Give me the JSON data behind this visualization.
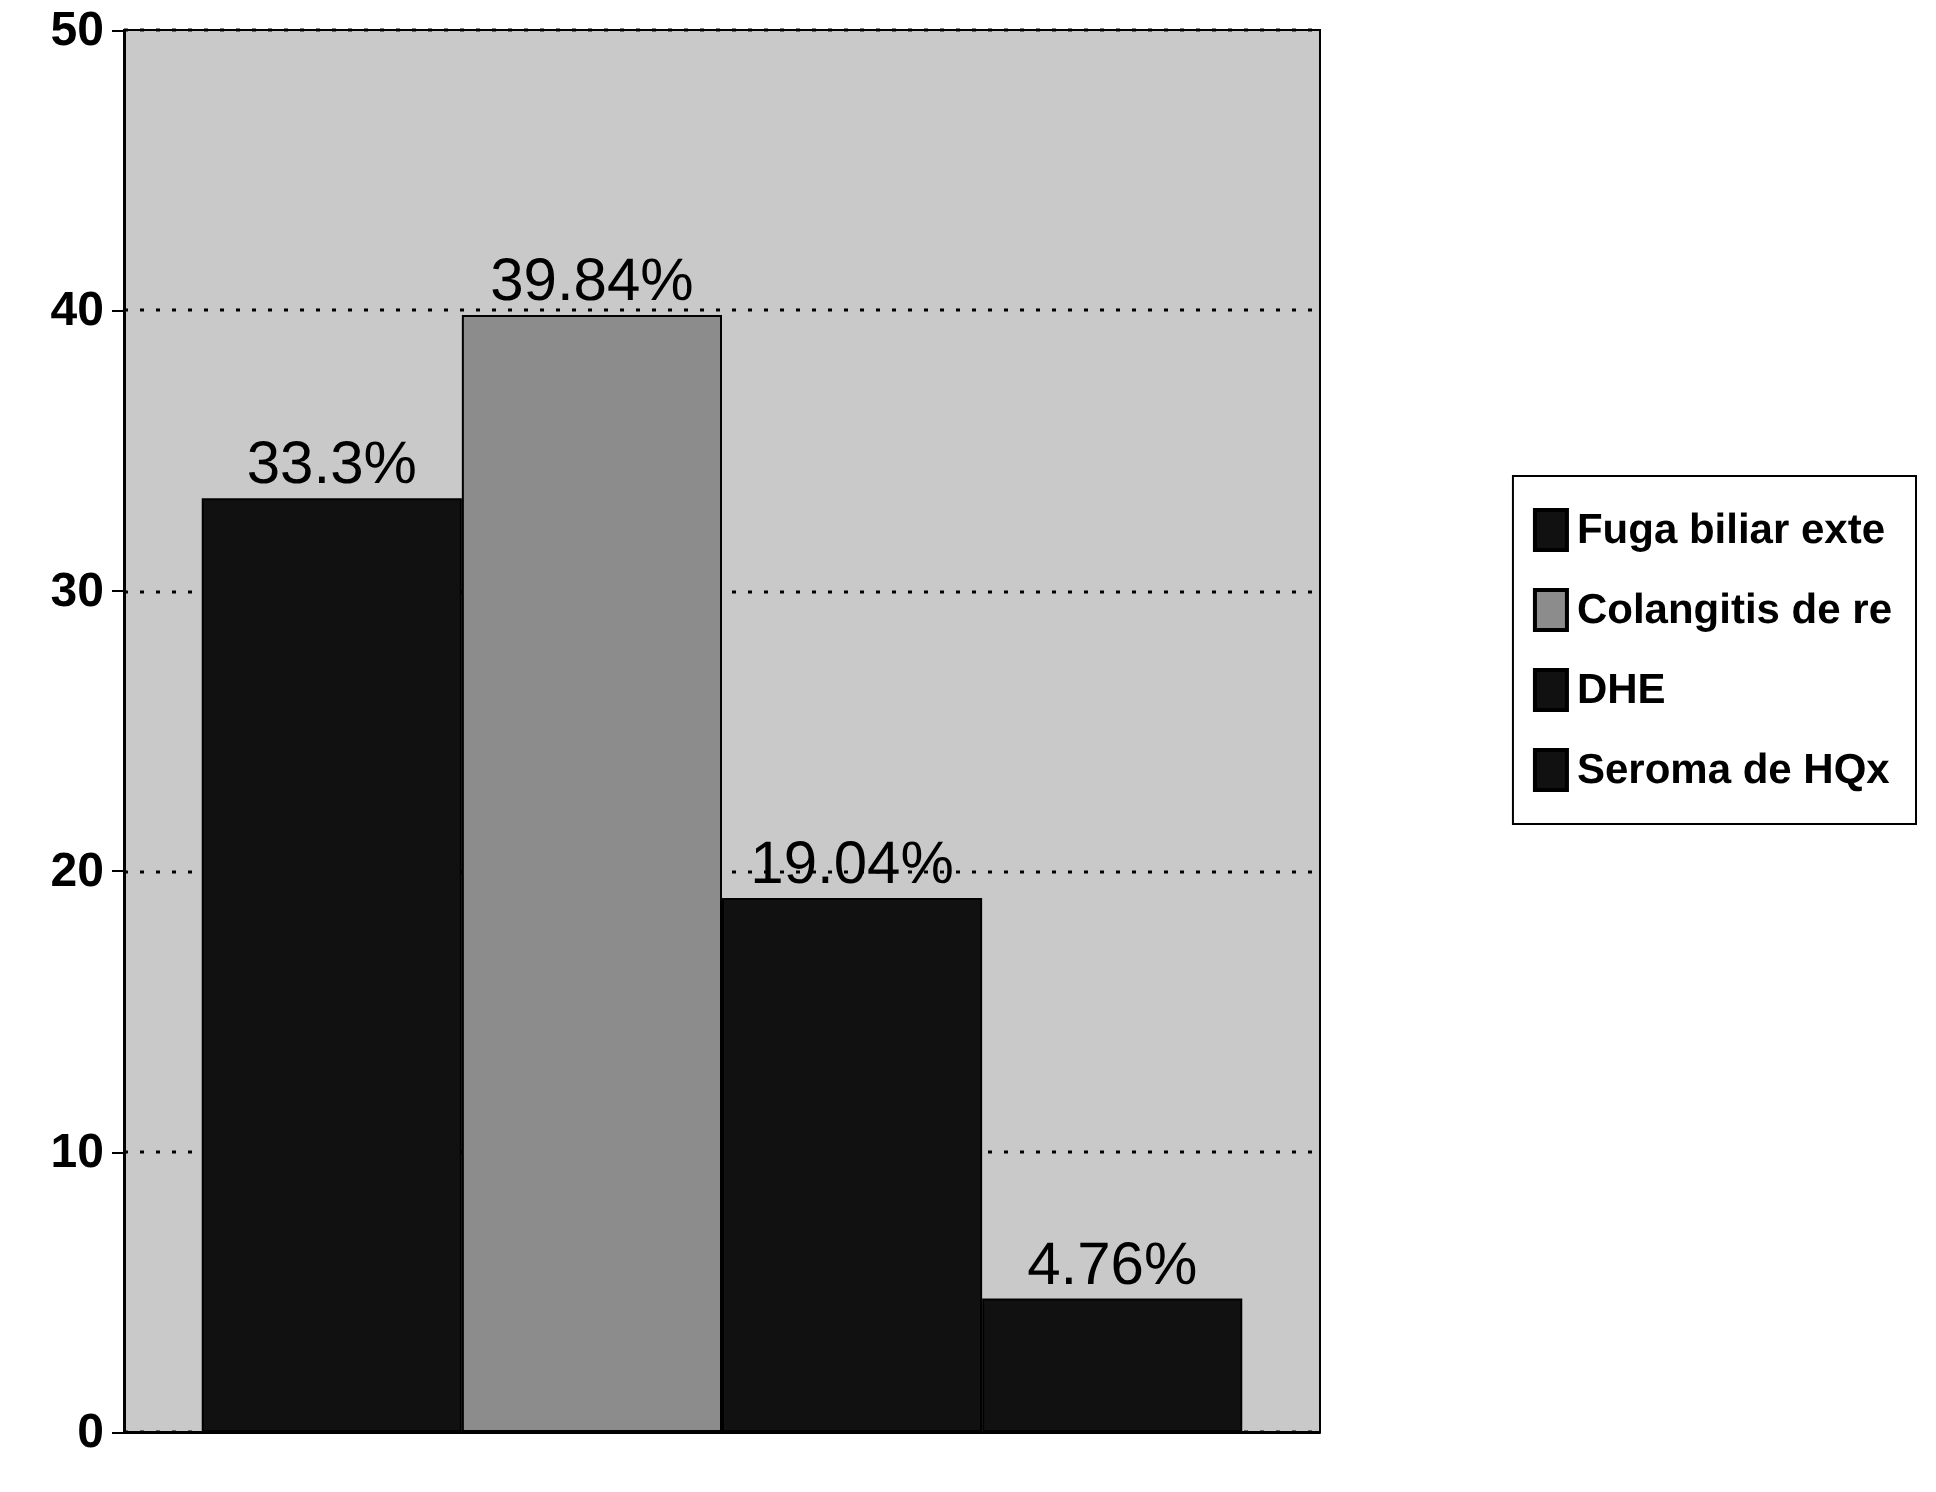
{
  "chart_data": {
    "type": "bar",
    "categories": [
      null
    ],
    "series": [
      {
        "name": "Fuga biliar exte",
        "color": "#111111",
        "values": [
          33.3
        ],
        "value_labels": [
          "33.3%"
        ]
      },
      {
        "name": "Colangitis de re",
        "color": "#8c8c8c",
        "values": [
          39.84
        ],
        "value_labels": [
          "39.84%"
        ]
      },
      {
        "name": "DHE",
        "color": "#111111",
        "values": [
          19.04
        ],
        "value_labels": [
          "19.04%"
        ]
      },
      {
        "name": "Seroma de HQx",
        "color": "#111111",
        "values": [
          4.76
        ],
        "value_labels": [
          "4.76%"
        ]
      }
    ],
    "ylim": [
      0,
      50
    ],
    "yticks": [
      0,
      10,
      20,
      30,
      40,
      50
    ],
    "grid": "y",
    "legend": "right"
  }
}
